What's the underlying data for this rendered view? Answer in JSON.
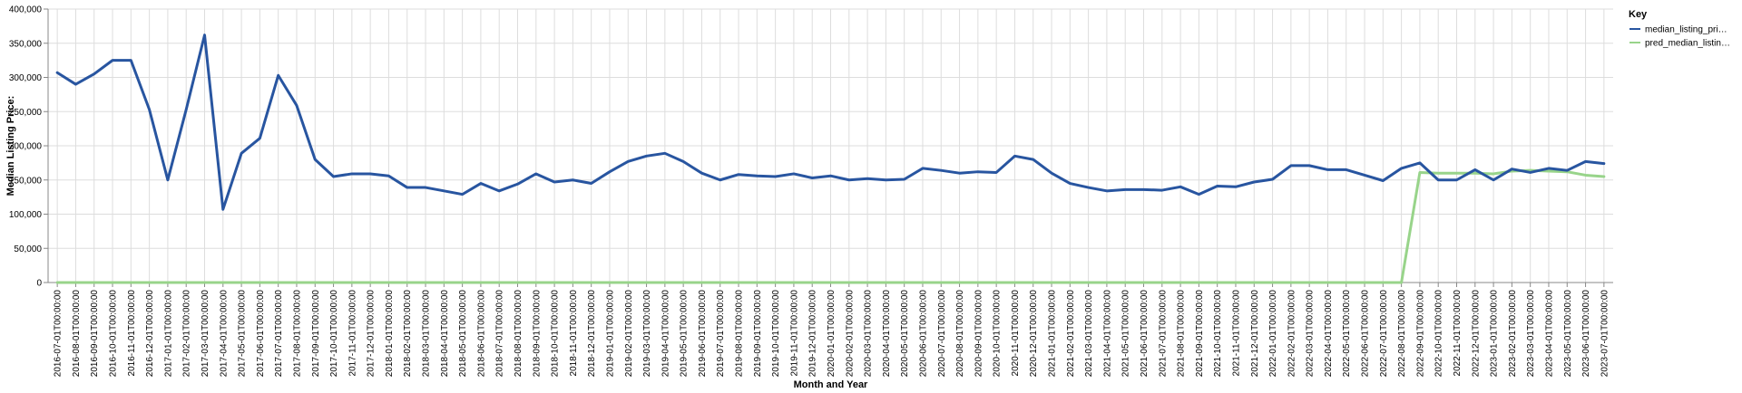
{
  "chart_data": {
    "type": "line",
    "xlabel": "Month and Year",
    "ylabel": "Median Listing Price:",
    "ylim": [
      0,
      400000
    ],
    "yticks": [
      "0",
      "50,000",
      "100,000",
      "150,000",
      "200,000",
      "250,000",
      "300,000",
      "350,000",
      "400,000"
    ],
    "grid": true,
    "legend": {
      "title": "Key",
      "placement": "top-right",
      "entries": [
        {
          "label": "median_listing_pri…",
          "color": "#2855a0"
        },
        {
          "label": "pred_median_listin…",
          "color": "#98d48a"
        }
      ]
    },
    "x": [
      "2016-07-01T00:00:00",
      "2016-08-01T00:00:00",
      "2016-09-01T00:00:00",
      "2016-10-01T00:00:00",
      "2016-11-01T00:00:00",
      "2016-12-01T00:00:00",
      "2017-01-01T00:00:00",
      "2017-02-01T00:00:00",
      "2017-03-01T00:00:00",
      "2017-04-01T00:00:00",
      "2017-05-01T00:00:00",
      "2017-06-01T00:00:00",
      "2017-07-01T00:00:00",
      "2017-08-01T00:00:00",
      "2017-09-01T00:00:00",
      "2017-10-01T00:00:00",
      "2017-11-01T00:00:00",
      "2017-12-01T00:00:00",
      "2018-01-01T00:00:00",
      "2018-02-01T00:00:00",
      "2018-03-01T00:00:00",
      "2018-04-01T00:00:00",
      "2018-05-01T00:00:00",
      "2018-06-01T00:00:00",
      "2018-07-01T00:00:00",
      "2018-08-01T00:00:00",
      "2018-09-01T00:00:00",
      "2018-10-01T00:00:00",
      "2018-11-01T00:00:00",
      "2018-12-01T00:00:00",
      "2019-01-01T00:00:00",
      "2019-02-01T00:00:00",
      "2019-03-01T00:00:00",
      "2019-04-01T00:00:00",
      "2019-05-01T00:00:00",
      "2019-06-01T00:00:00",
      "2019-07-01T00:00:00",
      "2019-08-01T00:00:00",
      "2019-09-01T00:00:00",
      "2019-10-01T00:00:00",
      "2019-11-01T00:00:00",
      "2019-12-01T00:00:00",
      "2020-01-01T00:00:00",
      "2020-02-01T00:00:00",
      "2020-03-01T00:00:00",
      "2020-04-01T00:00:00",
      "2020-05-01T00:00:00",
      "2020-06-01T00:00:00",
      "2020-07-01T00:00:00",
      "2020-08-01T00:00:00",
      "2020-09-01T00:00:00",
      "2020-10-01T00:00:00",
      "2020-11-01T00:00:00",
      "2020-12-01T00:00:00",
      "2021-01-01T00:00:00",
      "2021-02-01T00:00:00",
      "2021-03-01T00:00:00",
      "2021-04-01T00:00:00",
      "2021-05-01T00:00:00",
      "2021-06-01T00:00:00",
      "2021-07-01T00:00:00",
      "2021-08-01T00:00:00",
      "2021-09-01T00:00:00",
      "2021-10-01T00:00:00",
      "2021-11-01T00:00:00",
      "2021-12-01T00:00:00",
      "2022-01-01T00:00:00",
      "2022-02-01T00:00:00",
      "2022-03-01T00:00:00",
      "2022-04-01T00:00:00",
      "2022-05-01T00:00:00",
      "2022-06-01T00:00:00",
      "2022-07-01T00:00:00",
      "2022-08-01T00:00:00",
      "2022-09-01T00:00:00",
      "2022-10-01T00:00:00",
      "2022-11-01T00:00:00",
      "2022-12-01T00:00:00",
      "2023-01-01T00:00:00",
      "2023-02-01T00:00:00",
      "2023-03-01T00:00:00",
      "2023-04-01T00:00:00",
      "2023-05-01T00:00:00",
      "2023-06-01T00:00:00",
      "2023-07-01T00:00:00"
    ],
    "series": [
      {
        "name": "median_listing_pri…",
        "color": "#2855a0",
        "values": [
          307000,
          290000,
          305000,
          325000,
          325000,
          253000,
          150000,
          253000,
          362000,
          107000,
          189000,
          211000,
          303000,
          259000,
          180000,
          155000,
          159000,
          159000,
          156000,
          139000,
          139000,
          134000,
          129000,
          145000,
          134000,
          144000,
          159000,
          147000,
          150000,
          145000,
          162000,
          177000,
          185000,
          189000,
          177000,
          160000,
          150000,
          158000,
          156000,
          155000,
          159000,
          153000,
          156000,
          150000,
          152000,
          150000,
          151000,
          167000,
          164000,
          160000,
          162000,
          161000,
          185000,
          180000,
          160000,
          145000,
          139000,
          134000,
          136000,
          136000,
          135000,
          140000,
          129000,
          141000,
          140000,
          147000,
          151000,
          171000,
          171000,
          165000,
          165000,
          157000,
          149000,
          167000,
          175000,
          150000,
          150000,
          165000,
          150000,
          166000,
          161000,
          167000,
          164000,
          177000,
          174000
        ]
      },
      {
        "name": "pred_median_listin…",
        "color": "#98d48a",
        "values": [
          0,
          0,
          0,
          0,
          0,
          0,
          0,
          0,
          0,
          0,
          0,
          0,
          0,
          0,
          0,
          0,
          0,
          0,
          0,
          0,
          0,
          0,
          0,
          0,
          0,
          0,
          0,
          0,
          0,
          0,
          0,
          0,
          0,
          0,
          0,
          0,
          0,
          0,
          0,
          0,
          0,
          0,
          0,
          0,
          0,
          0,
          0,
          0,
          0,
          0,
          0,
          0,
          0,
          0,
          0,
          0,
          0,
          0,
          0,
          0,
          0,
          0,
          0,
          0,
          0,
          0,
          0,
          0,
          0,
          0,
          0,
          0,
          0,
          0,
          161000,
          160000,
          160000,
          160000,
          159000,
          163000,
          164000,
          163000,
          162000,
          157000,
          155000
        ]
      }
    ]
  }
}
